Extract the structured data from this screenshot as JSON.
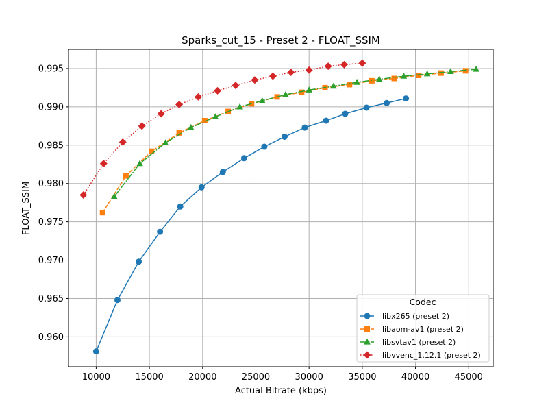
{
  "chart_data": {
    "type": "line",
    "title": "Sparks_cut_15 - Preset 2 - FLOAT_SSIM",
    "xlabel": "Actual Bitrate (kbps)",
    "ylabel": "FLOAT_SSIM",
    "xlim": [
      7400,
      47300
    ],
    "ylim": [
      0.9561,
      0.9975
    ],
    "xticks": [
      10000,
      15000,
      20000,
      25000,
      30000,
      35000,
      40000,
      45000
    ],
    "xtick_labels": [
      "10000",
      "15000",
      "20000",
      "25000",
      "30000",
      "35000",
      "40000",
      "45000"
    ],
    "yticks": [
      0.96,
      0.965,
      0.97,
      0.975,
      0.98,
      0.985,
      0.99,
      0.995
    ],
    "ytick_labels": [
      "0.960",
      "0.965",
      "0.970",
      "0.975",
      "0.980",
      "0.985",
      "0.990",
      "0.995"
    ],
    "grid": true,
    "legend": {
      "title": "Codec",
      "placement": "lower-right"
    },
    "series": [
      {
        "name": "libx265 (preset 2)",
        "color": "#1f77b4",
        "marker": "circle",
        "linestyle": "solid",
        "x": [
          10000,
          12000,
          14000,
          16000,
          17900,
          19900,
          21900,
          23900,
          25800,
          27700,
          29600,
          31600,
          33400,
          35400,
          37300,
          39100
        ],
        "y": [
          0.9581,
          0.9648,
          0.9698,
          0.9737,
          0.977,
          0.9795,
          0.9815,
          0.9833,
          0.9848,
          0.9861,
          0.9873,
          0.9882,
          0.9891,
          0.9899,
          0.9905,
          0.9911
        ]
      },
      {
        "name": "libaom-av1 (preset 2)",
        "color": "#ff7f0e",
        "marker": "square",
        "linestyle": "dashed",
        "x": [
          10600,
          12800,
          15200,
          17800,
          20200,
          22400,
          24600,
          27000,
          29300,
          31500,
          33800,
          35900,
          38000,
          40300,
          42400,
          44700
        ],
        "y": [
          0.9762,
          0.981,
          0.9842,
          0.9866,
          0.9882,
          0.9894,
          0.9904,
          0.9913,
          0.9919,
          0.9925,
          0.9929,
          0.9934,
          0.9937,
          0.9941,
          0.9944,
          0.9947
        ]
      },
      {
        "name": "libsvtav1 (preset 2)",
        "color": "#2ca02c",
        "marker": "triangle",
        "linestyle": "dashdot",
        "x": [
          11700,
          14100,
          16500,
          18900,
          21200,
          23500,
          25600,
          27800,
          30000,
          32300,
          34500,
          36600,
          38900,
          41100,
          43300,
          45700
        ],
        "y": [
          0.9783,
          0.9826,
          0.9853,
          0.9873,
          0.9887,
          0.99,
          0.9908,
          0.9916,
          0.9922,
          0.9927,
          0.9932,
          0.9936,
          0.994,
          0.9943,
          0.9946,
          0.9949
        ]
      },
      {
        "name": "libvvenc_1.12.1 (preset 2)",
        "color": "#d62728",
        "marker": "diamond",
        "linestyle": "dotted",
        "x": [
          8800,
          10700,
          12500,
          14300,
          16100,
          17800,
          19600,
          21400,
          23100,
          24900,
          26600,
          28300,
          30000,
          31800,
          33300,
          35000
        ],
        "y": [
          0.9785,
          0.9826,
          0.9854,
          0.9875,
          0.9891,
          0.9903,
          0.9913,
          0.9921,
          0.9928,
          0.9935,
          0.994,
          0.9945,
          0.9948,
          0.9953,
          0.9955,
          0.9957
        ]
      }
    ]
  }
}
